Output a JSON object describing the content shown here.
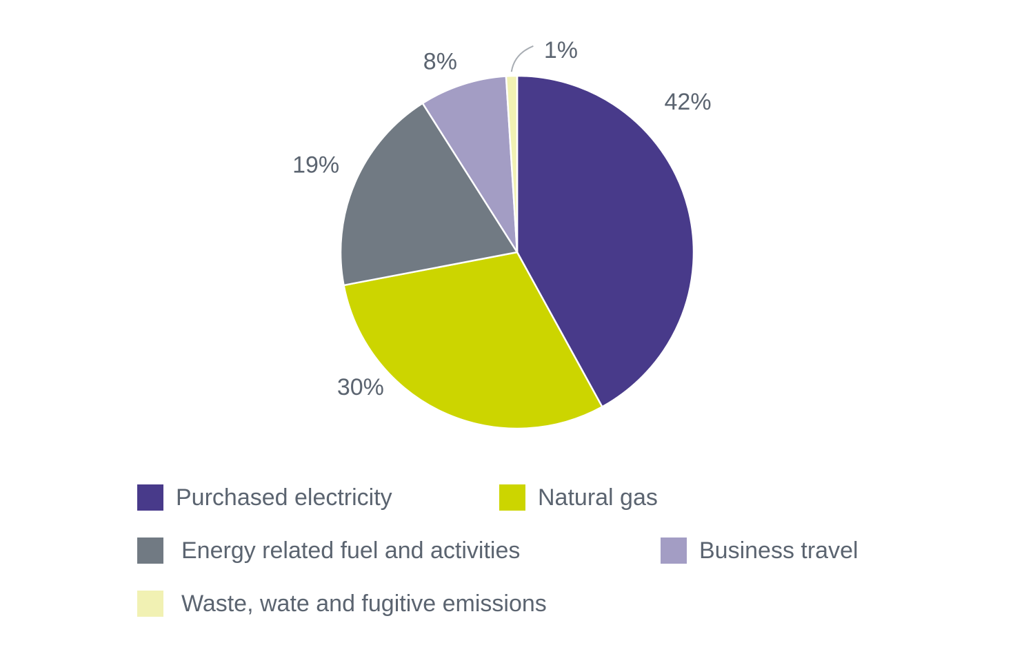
{
  "chart_data": {
    "type": "pie",
    "title": "",
    "categories": [
      "Purchased electricity",
      "Natural gas",
      "Energy related fuel and activities",
      "Business travel",
      "Waste, wate and fugitive emissions"
    ],
    "values": [
      42,
      30,
      19,
      8,
      1
    ],
    "value_labels": [
      "42%",
      "30%",
      "19%",
      "8%",
      "1%"
    ],
    "colors": [
      "#483a8a",
      "#ccd500",
      "#717a83",
      "#a39dc4",
      "#f1f1b3"
    ],
    "start_angle": "12 o'clock",
    "direction": "clockwise",
    "legend_position": "bottom"
  }
}
